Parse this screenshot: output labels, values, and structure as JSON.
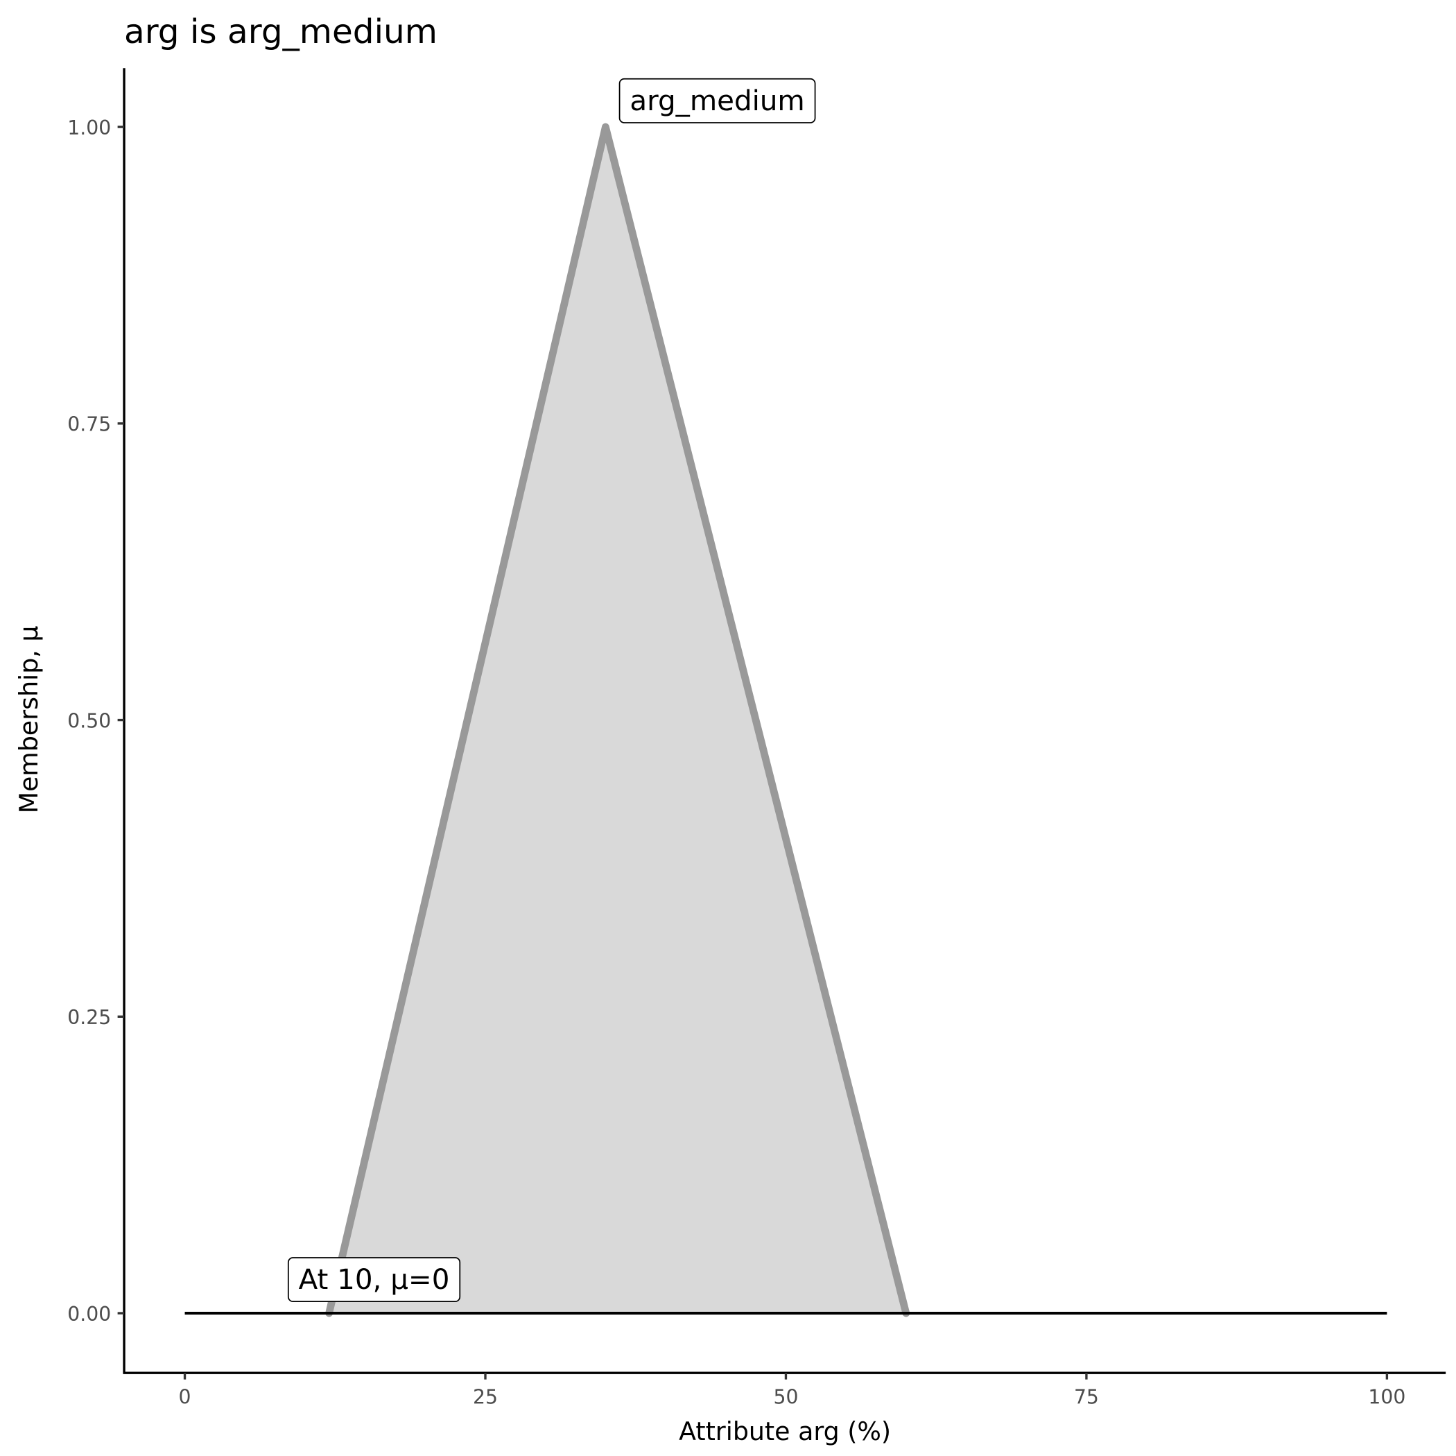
{
  "chart_data": {
    "type": "area",
    "title": "arg is arg_medium",
    "xlabel": "Attribute arg (%)",
    "ylabel": "Membership, μ",
    "xlim": [
      -5,
      105
    ],
    "ylim": [
      -0.05,
      1.05
    ],
    "xticks": [
      "0",
      "25",
      "50",
      "75",
      "100"
    ],
    "yticks": [
      "0.00",
      "0.25",
      "0.50",
      "0.75",
      "1.00"
    ],
    "grid": false,
    "series": [
      {
        "name": "arg_medium",
        "x": [
          12,
          35,
          60
        ],
        "y": [
          0,
          1,
          0
        ],
        "fill": "#d9d9d9",
        "stroke": "#999999"
      }
    ],
    "reference_line": {
      "x": [
        0,
        100
      ],
      "y": [
        0,
        0
      ],
      "color": "#000000"
    },
    "annotations": [
      {
        "text": "arg_medium",
        "x": 35,
        "y": 1
      },
      {
        "text": "At 10, μ=0",
        "x": 10,
        "y": 0
      }
    ]
  }
}
